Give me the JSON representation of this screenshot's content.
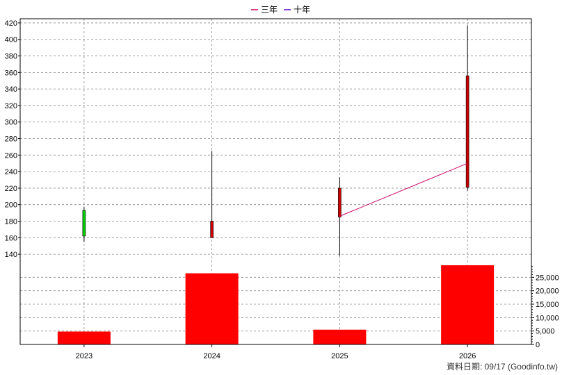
{
  "chart_data": {
    "type": "candlestick+bar",
    "legend": {
      "placement": "top-center",
      "items": [
        {
          "label": "三年",
          "color": "#cc0066"
        },
        {
          "label": "十年",
          "color": "#6600cc"
        }
      ]
    },
    "categories": [
      "2023",
      "2024",
      "2025",
      "2026"
    ],
    "price_axis": {
      "min": 130,
      "max": 425,
      "ticks": [
        140,
        160,
        180,
        200,
        220,
        240,
        260,
        280,
        300,
        320,
        340,
        360,
        380,
        400,
        420
      ]
    },
    "volume_axis": {
      "min": 0,
      "max": 30000,
      "ticks": [
        0,
        5000,
        10000,
        15000,
        20000,
        25000
      ],
      "tick_labels": [
        "0",
        "5,000",
        "10,000",
        "15,000",
        "20,000",
        "25,000"
      ]
    },
    "candles": [
      {
        "x": "2023",
        "open": 162,
        "close": 193,
        "high": 197,
        "low": 155,
        "color": "#00cc00"
      },
      {
        "x": "2024",
        "open": 180,
        "close": 160,
        "high": 265,
        "low": 160,
        "color": "#cc0000"
      },
      {
        "x": "2025",
        "open": 220,
        "close": 185,
        "high": 233,
        "low": 138,
        "color": "#cc0000"
      },
      {
        "x": "2026",
        "open": 356,
        "close": 221,
        "high": 417,
        "low": 217,
        "color": "#cc0000"
      }
    ],
    "volume": [
      {
        "x": "2023",
        "value": 4800
      },
      {
        "x": "2024",
        "value": 26500
      },
      {
        "x": "2025",
        "value": 5500
      },
      {
        "x": "2026",
        "value": 29500
      }
    ],
    "series": [
      {
        "name": "三年",
        "color": "#cc0066",
        "points": [
          {
            "x": "2025",
            "y": 186
          },
          {
            "x": "2026",
            "y": 250
          }
        ]
      }
    ],
    "grid": true,
    "colors": {
      "volume_bar": "#ff0000",
      "grid": "#888888"
    }
  },
  "footer": {
    "source": "資料日期: 09/17  (Goodinfo.tw)"
  }
}
